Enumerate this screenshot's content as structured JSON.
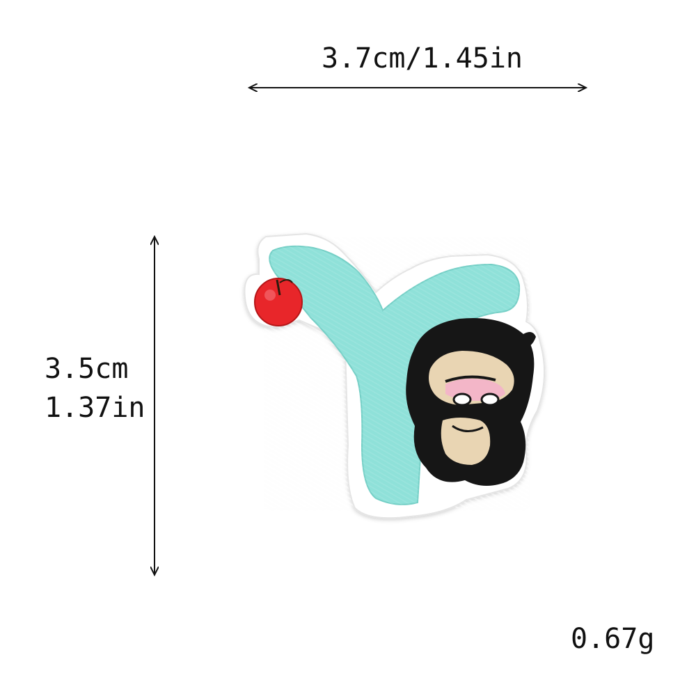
{
  "dimensions": {
    "width_label": "3.7cm/1.45in",
    "height_cm": "3.5cm",
    "height_in": "1.37in",
    "weight": "0.67g"
  },
  "patch": {
    "subject": "embroidered iron-on patch of a mint letter Y with a red apple and a small dark-haired cartoon character",
    "colors": {
      "border": "#ffffff",
      "letter": "#8fe1d9",
      "apple": "#e8262c",
      "hair": "#151515",
      "skin": "#e9d5b3",
      "blush": "#f3b6c8"
    }
  }
}
